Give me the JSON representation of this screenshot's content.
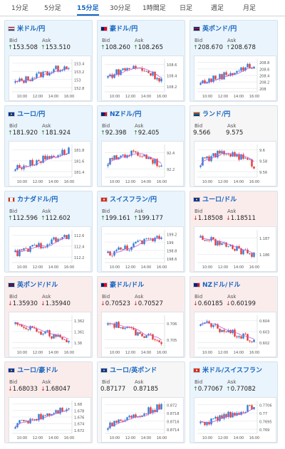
{
  "tabs": [
    "1分足",
    "5分足",
    "15分足",
    "30分足",
    "1時間足",
    "日足",
    "週足",
    "月足"
  ],
  "active_tab": "15分足",
  "colors": {
    "accent": "#1565c0",
    "up_candle": "#2f7fd6",
    "down_candle": "#e53935",
    "ma": "#c05ad6",
    "up_bg": "#eaf4fc",
    "down_bg": "#fbecec"
  },
  "labels": {
    "bid": "Bid",
    "ask": "Ask"
  },
  "cards": [
    {
      "pair": "米ドル/円",
      "flag": "us-flag",
      "trend": "up",
      "dir": "up",
      "bid": "153.508",
      "ask": "153.510",
      "yticks": [
        "153.4",
        "153.2",
        "153",
        "152.8"
      ],
      "xticks": [
        "10:00",
        "12:00",
        "14:00",
        "16:00"
      ],
      "shape": "up"
    },
    {
      "pair": "豪ドル/円",
      "flag": "au-flag",
      "trend": "up",
      "dir": "up",
      "bid": "108.260",
      "ask": "108.265",
      "yticks": [
        "108.6",
        "108.4",
        "108.2"
      ],
      "xticks": [
        "10:00",
        "12:00",
        "14:00",
        "16:00"
      ],
      "shape": "hump"
    },
    {
      "pair": "英ポンド/円",
      "flag": "gb-flag",
      "trend": "up",
      "dir": "up",
      "bid": "208.670",
      "ask": "208.678",
      "yticks": [
        "208.8",
        "208.6",
        "208.4",
        "208.2",
        "208"
      ],
      "xticks": [
        "10:00",
        "12:00",
        "14:00",
        "16:00"
      ],
      "shape": "up"
    },
    {
      "pair": "ユーロ/円",
      "flag": "eu-flag",
      "trend": "up",
      "dir": "up",
      "bid": "181.920",
      "ask": "181.924",
      "yticks": [
        "181.8",
        "181.6",
        "181.4"
      ],
      "xticks": [
        "10:00",
        "12:00",
        "14:00",
        "16:00"
      ],
      "shape": "up"
    },
    {
      "pair": "NZドル/円",
      "flag": "nz-flag",
      "trend": "up",
      "dir": "up",
      "bid": "92.398",
      "ask": "92.405",
      "yticks": [
        "92.4",
        "92.2"
      ],
      "xticks": [
        "10:00",
        "12:00",
        "14:00",
        "16:00"
      ],
      "shape": "hump"
    },
    {
      "pair": "ランド/円",
      "flag": "za-flag",
      "trend": "neutral",
      "dir": "none",
      "bid": "9.566",
      "ask": "9.575",
      "yticks": [
        "9.6",
        "9.58",
        "9.56"
      ],
      "xticks": [
        "10:00",
        "12:00",
        "14:00",
        "16:00"
      ],
      "shape": "hump"
    },
    {
      "pair": "カナダドル/円",
      "flag": "ca-flag",
      "trend": "up",
      "dir": "up",
      "bid": "112.596",
      "ask": "112.602",
      "yticks": [
        "112.6",
        "112.4",
        "112.2"
      ],
      "xticks": [
        "10:00",
        "12:00",
        "14:00",
        "16:00"
      ],
      "shape": "up"
    },
    {
      "pair": "スイスフラン/円",
      "flag": "ch-flag",
      "trend": "up",
      "dir": "up",
      "bid": "199.161",
      "ask": "199.177",
      "yticks": [
        "199.2",
        "199",
        "198.8",
        "198.6"
      ],
      "xticks": [
        "10:00",
        "12:00",
        "14:00",
        "16:00"
      ],
      "shape": "up"
    },
    {
      "pair": "ユーロ/ドル",
      "flag": "eu-flag",
      "trend": "down",
      "dir": "down",
      "bid": "1.18508",
      "ask": "1.18511",
      "yticks": [
        "1.187",
        "1.186"
      ],
      "xticks": [
        "10:00",
        "12:00",
        "14:00",
        "16:00"
      ],
      "shape": "down"
    },
    {
      "pair": "英ポンド/ドル",
      "flag": "gb-flag",
      "trend": "down",
      "dir": "down",
      "bid": "1.35930",
      "ask": "1.35940",
      "yticks": [
        "1.362",
        "1.361",
        "1.36"
      ],
      "xticks": [
        "10:00",
        "12:00",
        "14:00",
        "16:00"
      ],
      "shape": "down"
    },
    {
      "pair": "豪ドル/ドル",
      "flag": "au-flag",
      "trend": "down",
      "dir": "down",
      "bid": "0.70523",
      "ask": "0.70527",
      "yticks": [
        "0.706",
        "0.705"
      ],
      "xticks": [
        "10:00",
        "12:00",
        "14:00",
        "16:00"
      ],
      "shape": "down"
    },
    {
      "pair": "NZドル/ドル",
      "flag": "nz-flag",
      "trend": "down",
      "dir": "down",
      "bid": "0.60185",
      "ask": "0.60199",
      "yticks": [
        "0.604",
        "0.603",
        "0.602"
      ],
      "xticks": [
        "10:00",
        "12:00",
        "14:00",
        "16:00"
      ],
      "shape": "down"
    },
    {
      "pair": "ユーロ/豪ドル",
      "flag": "eu-flag",
      "trend": "down",
      "dir": "down",
      "bid": "1.68033",
      "ask": "1.68047",
      "yticks": [
        "1.68",
        "1.678",
        "1.676",
        "1.674",
        "1.672"
      ],
      "xticks": [
        "10:00",
        "12:00",
        "14:00",
        "16:00"
      ],
      "shape": "up"
    },
    {
      "pair": "ユーロ/英ポンド",
      "flag": "eu-flag",
      "trend": "neutral",
      "dir": "none",
      "bid": "0.87177",
      "ask": "0.87185",
      "yticks": [
        "0.872",
        "0.8718",
        "0.8716",
        "0.8714"
      ],
      "xticks": [
        "10:00",
        "12:00",
        "14:00",
        "16:00"
      ],
      "shape": "up"
    },
    {
      "pair": "米ドル/スイスフラン",
      "flag": "ch-flag",
      "trend": "up",
      "dir": "up",
      "bid": "0.77067",
      "ask": "0.77082",
      "yticks": [
        "0.7706",
        "0.77",
        "0.7695",
        "0.769"
      ],
      "xticks": [
        "10:00",
        "12:00",
        "14:00",
        "16:00"
      ],
      "shape": "up"
    }
  ]
}
